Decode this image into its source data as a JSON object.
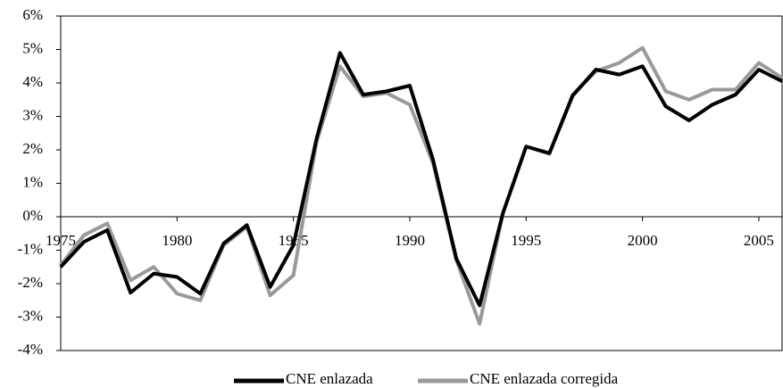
{
  "chart_data": {
    "type": "line",
    "x": [
      1975,
      1976,
      1977,
      1978,
      1979,
      1980,
      1981,
      1982,
      1983,
      1984,
      1985,
      1986,
      1987,
      1988,
      1989,
      1990,
      1991,
      1992,
      1993,
      1994,
      1995,
      1996,
      1997,
      1998,
      1999,
      2000,
      2001,
      2002,
      2003,
      2004,
      2005,
      2006
    ],
    "series": [
      {
        "name": "CNE enlazada",
        "color": "#000000",
        "values": [
          -1.5,
          -0.75,
          -0.4,
          -2.27,
          -1.7,
          -1.8,
          -2.3,
          -0.8,
          -0.25,
          -2.1,
          -0.85,
          2.35,
          4.9,
          3.65,
          3.75,
          3.92,
          1.7,
          -1.25,
          -2.65,
          0.1,
          2.1,
          1.9,
          3.62,
          4.4,
          4.25,
          4.5,
          3.3,
          2.88,
          3.35,
          3.65,
          4.4,
          4.05
        ]
      },
      {
        "name": "CNE enlazada corregida",
        "color": "#999999",
        "values": [
          -1.45,
          -0.55,
          -0.2,
          -1.9,
          -1.5,
          -2.3,
          -2.5,
          -0.85,
          -0.3,
          -2.35,
          -1.75,
          2.25,
          4.5,
          3.6,
          3.7,
          3.35,
          1.6,
          -1.3,
          -3.2,
          0.1,
          2.1,
          1.88,
          3.65,
          4.35,
          4.6,
          5.05,
          3.75,
          3.5,
          3.8,
          3.8,
          4.6,
          4.15
        ]
      }
    ],
    "xlim": [
      1975,
      2006
    ],
    "xticks": [
      1975,
      1980,
      1985,
      1990,
      1995,
      2000,
      2005
    ],
    "ylim": [
      -4,
      6
    ],
    "yticks": [
      {
        "value": -4,
        "label": "-4%"
      },
      {
        "value": -3,
        "label": "-3%"
      },
      {
        "value": -2,
        "label": "-2%"
      },
      {
        "value": -1,
        "label": "-1%"
      },
      {
        "value": 0,
        "label": "0%"
      },
      {
        "value": 1,
        "label": "1%"
      },
      {
        "value": 2,
        "label": "2%"
      },
      {
        "value": 3,
        "label": "3%"
      },
      {
        "value": 4,
        "label": "4%"
      },
      {
        "value": 5,
        "label": "5%"
      },
      {
        "value": 6,
        "label": "6%"
      }
    ],
    "legend": "bottom"
  }
}
